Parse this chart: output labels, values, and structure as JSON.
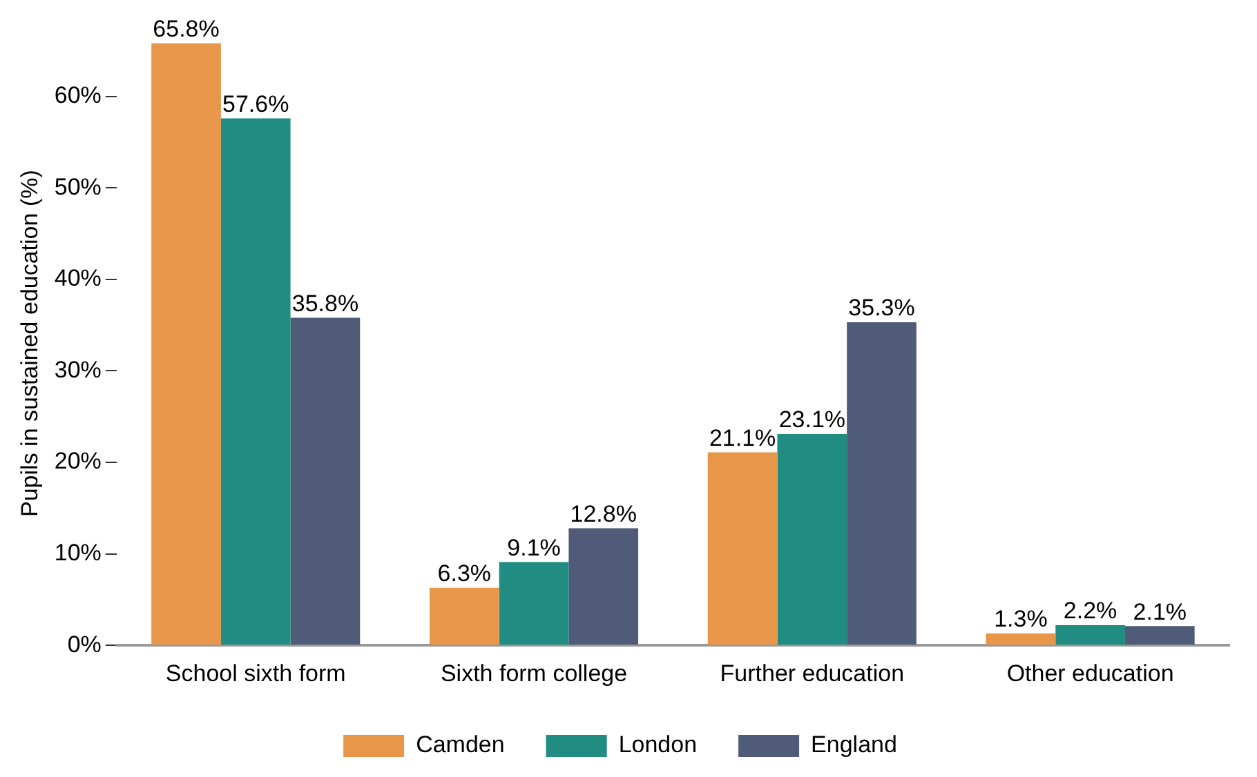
{
  "chart_data": {
    "type": "bar",
    "ylabel": "Pupils in sustained education (%)",
    "categories": [
      "School sixth form",
      "Sixth form college",
      "Further education",
      "Other education"
    ],
    "series": [
      {
        "name": "Camden",
        "color": "#e8964a",
        "values": [
          65.8,
          6.3,
          21.1,
          1.3
        ],
        "value_labels": [
          "65.8%",
          "6.3%",
          "21.1%",
          "1.3%"
        ]
      },
      {
        "name": "London",
        "color": "#218c81",
        "values": [
          57.6,
          9.1,
          23.1,
          2.2
        ],
        "value_labels": [
          "57.6%",
          "9.1%",
          "23.1%",
          "2.2%"
        ]
      },
      {
        "name": "England",
        "color": "#4f5b78",
        "values": [
          35.8,
          12.8,
          35.3,
          2.1
        ],
        "value_labels": [
          "35.8%",
          "12.8%",
          "35.3%",
          "2.1%"
        ]
      }
    ],
    "ylim": [
      0,
      66
    ],
    "yticks": [
      {
        "value": 0,
        "label": "0%"
      },
      {
        "value": 10,
        "label": "10%"
      },
      {
        "value": 20,
        "label": "20%"
      },
      {
        "value": 30,
        "label": "30%"
      },
      {
        "value": 40,
        "label": "40%"
      },
      {
        "value": 50,
        "label": "50%"
      },
      {
        "value": 60,
        "label": "60%"
      }
    ],
    "grid": false,
    "legend": "bottom"
  }
}
